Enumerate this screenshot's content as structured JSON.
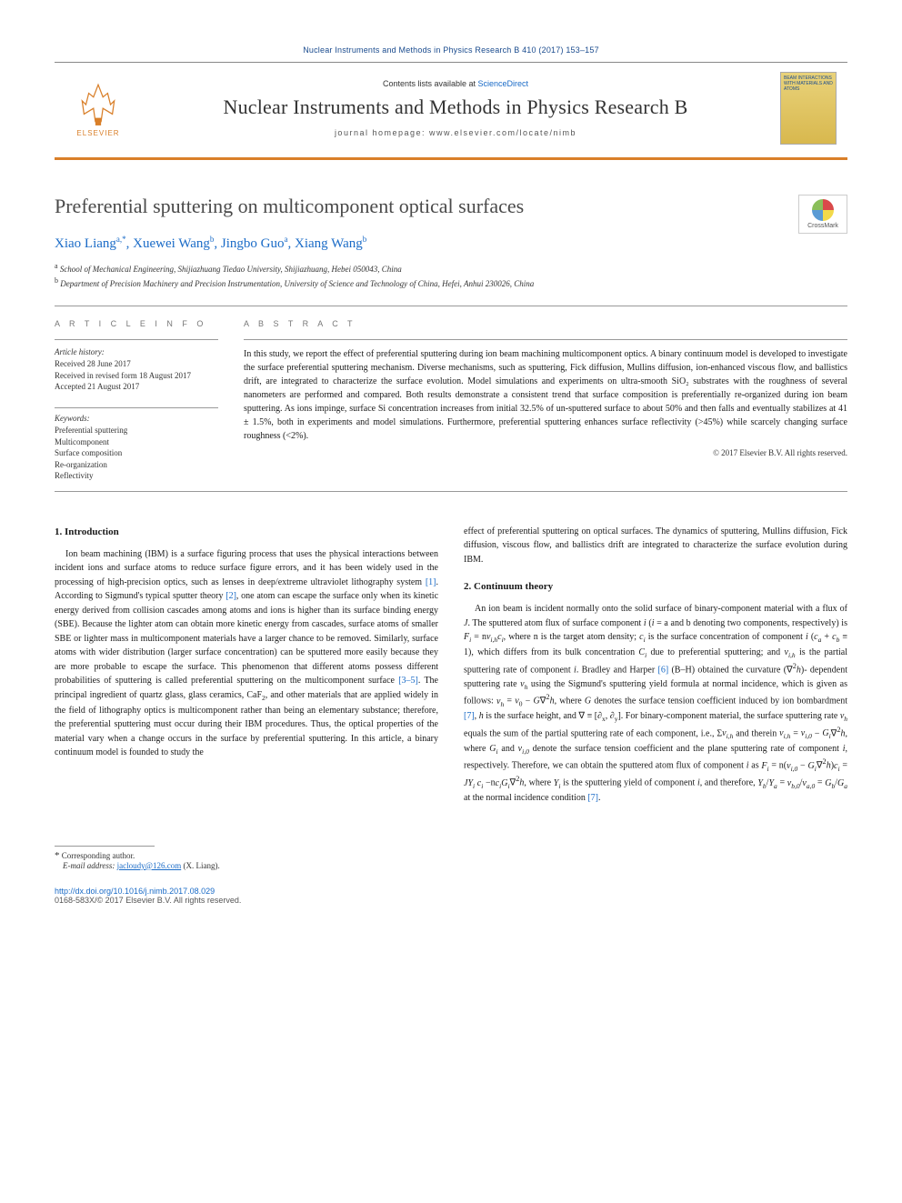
{
  "journal_header_line": "Nuclear Instruments and Methods in Physics Research B 410 (2017) 153–157",
  "banner": {
    "publisher": "ELSEVIER",
    "contents_text": "Contents lists available at ",
    "contents_link": "ScienceDirect",
    "journal_name": "Nuclear Instruments and Methods in Physics Research B",
    "homepage_label": "journal homepage: ",
    "homepage_url": "www.elsevier.com/locate/nimb",
    "cover_text": "BEAM INTERACTIONS WITH MATERIALS AND ATOMS"
  },
  "title": "Preferential sputtering on multicomponent optical surfaces",
  "crossmark_label": "CrossMark",
  "authors_html": "Xiao Liang<sup>a,*</sup>, Xuewei Wang<sup>b</sup>, Jingbo Guo<sup>a</sup>, Xiang Wang<sup>b</sup>",
  "affiliations": {
    "a": "School of Mechanical Engineering, Shijiazhuang Tiedao University, Shijiazhuang, Hebei 050043, China",
    "b": "Department of Precision Machinery and Precision Instrumentation, University of Science and Technology of China, Hefei, Anhui 230026, China"
  },
  "info": {
    "label": "A R T I C L E   I N F O",
    "history_heading": "Article history:",
    "received": "Received 28 June 2017",
    "revised": "Received in revised form 18 August 2017",
    "accepted": "Accepted 21 August 2017",
    "keywords_heading": "Keywords:",
    "keywords": [
      "Preferential sputtering",
      "Multicomponent",
      "Surface composition",
      "Re-organization",
      "Reflectivity"
    ]
  },
  "abstract": {
    "label": "A B S T R A C T",
    "text": "In this study, we report the effect of preferential sputtering during ion beam machining multicomponent optics. A binary continuum model is developed to investigate the surface preferential sputtering mechanism. Diverse mechanisms, such as sputtering, Fick diffusion, Mullins diffusion, ion-enhanced viscous flow, and ballistics drift, are integrated to characterize the surface evolution. Model simulations and experiments on ultra-smooth SiO₂ substrates with the roughness of several nanometers are performed and compared. Both results demonstrate a consistent trend that surface composition is preferentially re-organized during ion beam sputtering. As ions impinge, surface Si concentration increases from initial 32.5% of un-sputtered surface to about 50% and then falls and eventually stabilizes at 41 ± 1.5%, both in experiments and model simulations. Furthermore, preferential sputtering enhances surface reflectivity (>45%) while scarcely changing surface roughness (<2%).",
    "copyright": "© 2017 Elsevier B.V. All rights reserved."
  },
  "sections": {
    "intro_heading": "1. Introduction",
    "intro_body": "Ion beam machining (IBM) is a surface figuring process that uses the physical interactions between incident ions and surface atoms to reduce surface figure errors, and it has been widely used in the processing of high-precision optics, such as lenses in deep/extreme ultraviolet lithography system <span class=\"ref\">[1]</span>. According to Sigmund's typical sputter theory <span class=\"ref\">[2]</span>, one atom can escape the surface only when its kinetic energy derived from collision cascades among atoms and ions is higher than its surface binding energy (SBE). Because the lighter atom can obtain more kinetic energy from cascades, surface atoms of smaller SBE or lighter mass in multicomponent materials have a larger chance to be removed. Similarly, surface atoms with wider distribution (larger surface concentration) can be sputtered more easily because they are more probable to escape the surface. This phenomenon that different atoms possess different probabilities of sputtering is called preferential sputtering on the multicomponent surface <span class=\"ref\">[3–5]</span>. The principal ingredient of quartz glass, glass ceramics, CaF<sub>2</sub>, and other materials that are applied widely in the field of lithography optics is multicomponent rather than being an elementary substance; therefore, the preferential sputtering must occur during their IBM procedures. Thus, the optical properties of the material vary when a change occurs in the surface by preferential sputtering. In this article, a binary continuum model is founded to study the",
    "intro_body_col2": "effect of preferential sputtering on optical surfaces. The dynamics of sputtering, Mullins diffusion, Fick diffusion, viscous flow, and ballistics drift are integrated to characterize the surface evolution during IBM.",
    "theory_heading": "2. Continuum theory",
    "theory_body": "An ion beam is incident normally onto the solid surface of binary-component material with a flux of <i>J</i>. The sputtered atom flux of surface component <i>i</i> (<i>i</i> = a and b denoting two components, respectively) is <i>F<sub>i</sub></i> = n<i>v<sub>i,h</sub>c<sub>i</sub></i>, where n is the target atom density; <i>c<sub>i</sub></i> is the surface concentration of component <i>i</i> (<i>c<sub>a</sub></i> + <i>c<sub>b</sub></i> ≡ 1), which differs from its bulk concentration <i>C<sub>i</sub></i> due to preferential sputtering; and <i>v<sub>i,h</sub></i> is the partial sputtering rate of component <i>i</i>. Bradley and Harper <span class=\"ref\">[6]</span> (B–H) obtained the curvature (∇<sup>2</sup><i>h</i>)- dependent sputtering rate <i>v<sub>h</sub></i> using the Sigmund's sputtering yield formula at normal incidence, which is given as follows: <i>v<sub>h</sub></i> = <i>v</i><sub>0</sub> − <i>G</i>∇<sup>2</sup><i>h</i>, where <i>G</i> denotes the surface tension coefficient induced by ion bombardment <span class=\"ref\">[7]</span>, <i>h</i> is the surface height, and ∇ ≡ [∂<sub>x</sub>, ∂<sub>y</sub>]. For binary-component material, the surface sputtering rate <i>v<sub>h</sub></i> equals the sum of the partial sputtering rate of each component, i.e., Σ<i>v<sub>i,h</sub></i> and therein <i>v<sub>i,h</sub></i> = <i>v<sub>i,0</sub></i> − <i>G<sub>i</sub></i>∇<sup>2</sup><i>h</i>, where <i>G<sub>i</sub></i> and <i>v<sub>i,0</sub></i> denote the surface tension coefficient and the plane sputtering rate of component <i>i</i>, respectively. Therefore, we can obtain the sputtered atom flux of component <i>i</i> as <i>F<sub>i</sub></i> = n(<i>v<sub>i,0</sub></i> − <i>G<sub>i</sub></i>∇<sup>2</sup><i>h</i>)<i>c<sub>i</sub></i> = <i>JY<sub>i</sub> c<sub>i</sub></i> −n<i>c<sub>i</sub>G<sub>i</sub></i>∇<sup>2</sup><i>h</i>, where <i>Y<sub>i</sub></i> is the sputtering yield of component <i>i</i>, and therefore, <i>Y<sub>b</sub></i>/<i>Y<sub>a</sub></i> = <i>v<sub>b,0</sub></i>/<i>v<sub>a,0</sub></i> = <i>G<sub>b</sub></i>/<i>G<sub>a</sub></i> at the normal incidence condition <span class=\"ref\">[7]</span>."
  },
  "footer": {
    "corresponding": "Corresponding author.",
    "email_label": "E-mail address: ",
    "email": "jacloudy@126.com",
    "email_name": " (X. Liang).",
    "doi": "http://dx.doi.org/10.1016/j.nimb.2017.08.029",
    "issn_line": "0168-583X/© 2017 Elsevier B.V. All rights reserved."
  },
  "colors": {
    "brand_orange": "#d97f29",
    "link_blue": "#1a6bc7",
    "header_blue": "#1a4b8e",
    "text": "#1a1a1a",
    "rule": "#999999"
  }
}
